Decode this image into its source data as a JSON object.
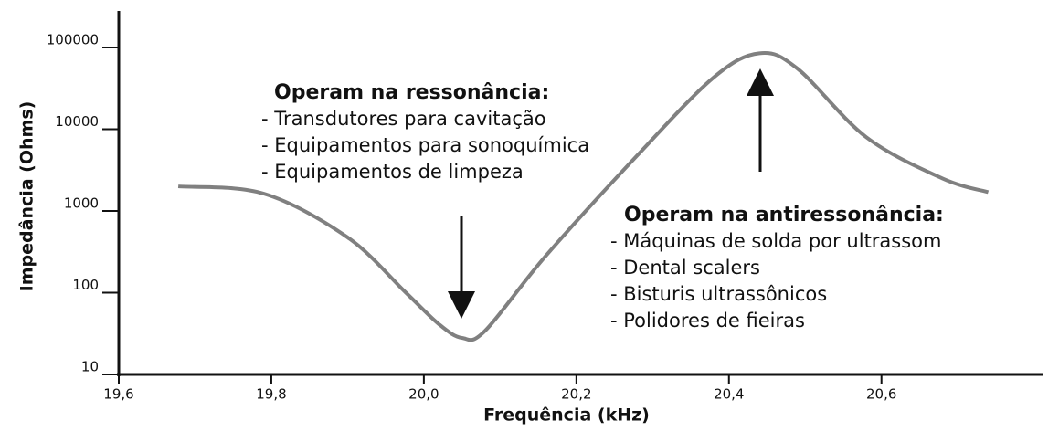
{
  "chart_data": {
    "type": "line",
    "log_y": true,
    "x_label": "Frequência (kHz)",
    "y_label": "Impedância (Ohms)",
    "xlim": [
      19.6,
      20.81
    ],
    "ylim": [
      10,
      280000
    ],
    "xticks": [
      {
        "value": 19.6,
        "label": "19,6"
      },
      {
        "value": 19.8,
        "label": "19,8"
      },
      {
        "value": 20.0,
        "label": "20,0"
      },
      {
        "value": 20.2,
        "label": "20,2"
      },
      {
        "value": 20.4,
        "label": "20,4"
      },
      {
        "value": 20.6,
        "label": "20,6"
      }
    ],
    "yticks": [
      10,
      100,
      1000,
      10000,
      100000
    ],
    "series": [
      {
        "color": "#808080",
        "x": [
          19.678,
          19.79,
          19.9,
          19.976,
          20.02,
          20.05,
          20.08,
          20.16,
          20.28,
          20.38,
          20.44,
          20.49,
          20.58,
          20.68,
          20.74
        ],
        "values": [
          2000,
          1630,
          475,
          101,
          41,
          28,
          34,
          283,
          4800,
          43000,
          85000,
          55000,
          8000,
          2500,
          1700
        ]
      }
    ],
    "annotations": [
      {
        "title": "Operam na ressonância:",
        "items": [
          "- Transdutores para cavitação",
          "- Equipamentos para sonoquímica",
          "- Equipamentos de limpeza"
        ]
      },
      {
        "title": "Operam na antiressonância:",
        "items": [
          "- Máquinas de solda por ultrassom",
          "- Dental scalers",
          "- Bisturis ultrassônicos",
          "- Polidores de fieiras"
        ]
      }
    ]
  }
}
